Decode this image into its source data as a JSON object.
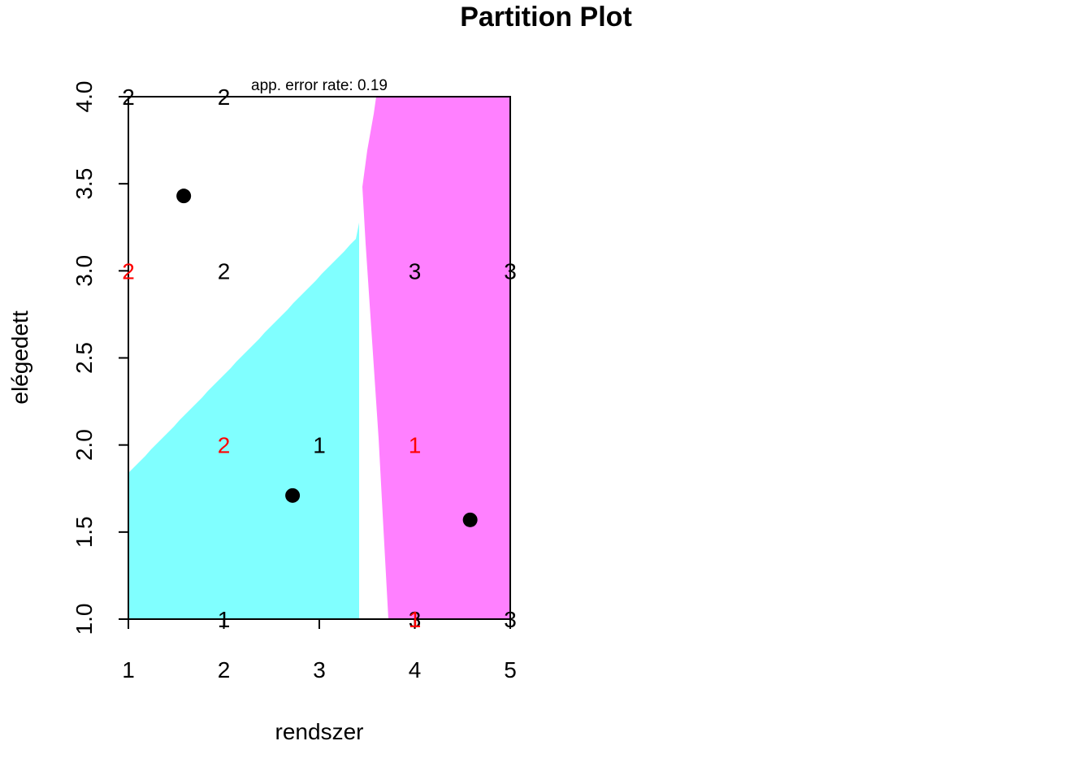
{
  "chart_data": {
    "type": "scatter",
    "title": "Partition Plot",
    "subtitle": "app. error rate: 0.19",
    "xlabel": "rendszer",
    "ylabel": "elégedett",
    "xlim": [
      1,
      5
    ],
    "ylim": [
      1,
      4
    ],
    "x_ticks": [
      "1",
      "2",
      "3",
      "4",
      "5"
    ],
    "y_ticks": [
      "1.0",
      "1.5",
      "2.0",
      "2.5",
      "3.0",
      "3.5",
      "4.0"
    ],
    "colors": {
      "region_2": "#ffffff",
      "region_1": "#80ffff",
      "region_3": "#ff80ff",
      "correct": "#000000",
      "misclassified": "#ff0000",
      "centroid": "#000000"
    },
    "observations": [
      {
        "x": 1,
        "y": 4,
        "label": "2",
        "misclassified": false
      },
      {
        "x": 2,
        "y": 4,
        "label": "2",
        "misclassified": false
      },
      {
        "x": 1,
        "y": 3,
        "label": "2",
        "misclassified": true
      },
      {
        "x": 2,
        "y": 3,
        "label": "2",
        "misclassified": false
      },
      {
        "x": 4,
        "y": 3,
        "label": "3",
        "misclassified": false
      },
      {
        "x": 5,
        "y": 3,
        "label": "3",
        "misclassified": false
      },
      {
        "x": 2,
        "y": 2,
        "label": "2",
        "misclassified": true
      },
      {
        "x": 3,
        "y": 2,
        "label": "1",
        "misclassified": false
      },
      {
        "x": 4,
        "y": 2,
        "label": "1",
        "misclassified": true
      },
      {
        "x": 2,
        "y": 1,
        "label": "1",
        "misclassified": false
      },
      {
        "x": 4,
        "y": 1,
        "label": "3",
        "misclassified": false
      },
      {
        "x": 4,
        "y": 1,
        "label": "1",
        "misclassified": true
      },
      {
        "x": 5,
        "y": 1,
        "label": "3",
        "misclassified": false
      }
    ],
    "centroids": [
      {
        "class": "2",
        "x": 1.58,
        "y": 3.43
      },
      {
        "class": "1",
        "x": 2.72,
        "y": 1.71
      },
      {
        "class": "3",
        "x": 4.58,
        "y": 1.57
      }
    ]
  }
}
